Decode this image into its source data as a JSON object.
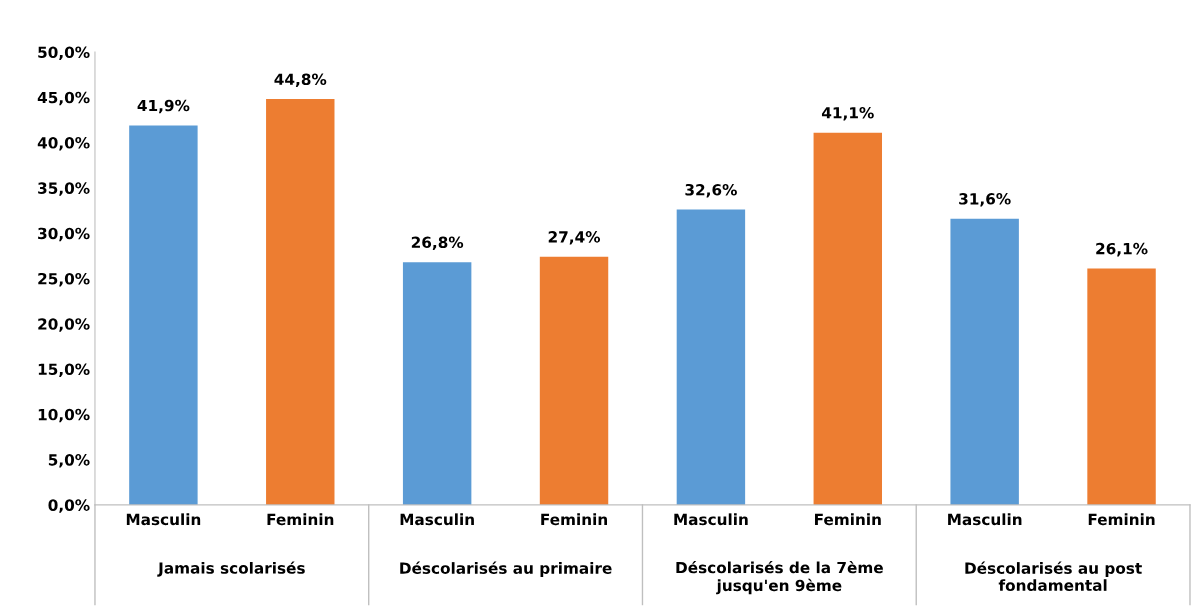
{
  "chart_data": {
    "type": "bar",
    "categories": [
      "Jamais scolarisés",
      "Déscolarisés au primaire",
      "Déscolarisés de la 7ème\njusqu'en 9ème",
      "Déscolarisés au post\nfondamental"
    ],
    "series": [
      {
        "name": "Masculin",
        "color": "#5b9bd5",
        "values": [
          41.9,
          26.8,
          32.6,
          31.6
        ],
        "value_labels": [
          "41,9%",
          "26,8%",
          "32,6%",
          "31,6%"
        ]
      },
      {
        "name": "Feminin",
        "color": "#ed7d31",
        "values": [
          44.8,
          27.4,
          41.1,
          26.1
        ],
        "value_labels": [
          "44,8%",
          "27,4%",
          "41,1%",
          "26,1%"
        ]
      }
    ],
    "ylim": [
      0,
      50
    ],
    "yticks": [
      {
        "value": 0,
        "label": "0,0%"
      },
      {
        "value": 5,
        "label": "5,0%"
      },
      {
        "value": 10,
        "label": "10,0%"
      },
      {
        "value": 15,
        "label": "15,0%"
      },
      {
        "value": 20,
        "label": "20,0%"
      },
      {
        "value": 25,
        "label": "25,0%"
      },
      {
        "value": 30,
        "label": "30,0%"
      },
      {
        "value": 35,
        "label": "35,0%"
      },
      {
        "value": 40,
        "label": "40,0%"
      },
      {
        "value": 45,
        "label": "45,0%"
      },
      {
        "value": 50,
        "label": "50,0%"
      }
    ],
    "grid": false,
    "legend": false
  }
}
